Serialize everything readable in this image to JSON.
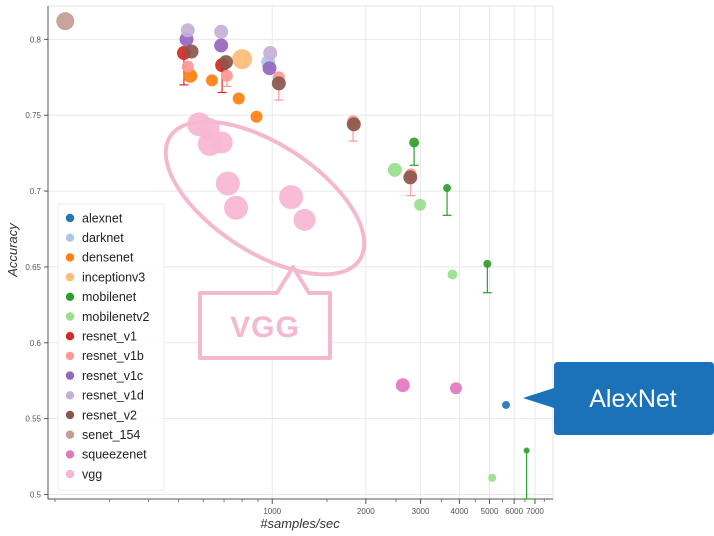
{
  "chart_data": {
    "type": "scatter",
    "title": "",
    "xlabel": "#samples/sec",
    "ylabel": "Accuracy",
    "xscale": "log",
    "xlim": [
      190,
      8000
    ],
    "ylim": [
      0.497,
      0.822
    ],
    "x_ticks": [
      {
        "value": 1000,
        "label": "1000"
      },
      {
        "value": 2000,
        "label": "2000"
      },
      {
        "value": 3000,
        "label": "3000"
      },
      {
        "value": 4000,
        "label": "4000"
      },
      {
        "value": 5000,
        "label": "5000"
      },
      {
        "value": 6000,
        "label": "6000"
      },
      {
        "value": 7000,
        "label": "7000"
      }
    ],
    "y_ticks": [
      {
        "value": 0.8,
        "label": "0.8"
      },
      {
        "value": 0.75,
        "label": "0.75"
      },
      {
        "value": 0.7,
        "label": "0.7"
      },
      {
        "value": 0.65,
        "label": "0.65"
      },
      {
        "value": 0.6,
        "label": "0.6"
      },
      {
        "value": 0.55,
        "label": "0.55"
      },
      {
        "value": 0.5,
        "label": "0.5"
      }
    ],
    "legend_position": "left",
    "series": [
      {
        "name": "alexnet",
        "color": "#1f77b4",
        "points": [
          {
            "x": 5650,
            "y": 0.559,
            "r": 4
          }
        ]
      },
      {
        "name": "darknet",
        "color": "#aec7e8",
        "points": [
          {
            "x": 970,
            "y": 0.785,
            "r": 7
          }
        ]
      },
      {
        "name": "densenet",
        "color": "#ff7f0e",
        "points": [
          {
            "x": 545,
            "y": 0.776,
            "r": 7
          },
          {
            "x": 640,
            "y": 0.773,
            "r": 6
          },
          {
            "x": 780,
            "y": 0.761,
            "r": 6
          },
          {
            "x": 890,
            "y": 0.749,
            "r": 6
          }
        ]
      },
      {
        "name": "inceptionv3",
        "color": "#ffbb78",
        "points": [
          {
            "x": 800,
            "y": 0.787,
            "r": 10
          }
        ]
      },
      {
        "name": "mobilenet",
        "color": "#2ca02c",
        "points": [
          {
            "x": 2860,
            "y": 0.732,
            "r": 5,
            "err_low": 0.717
          },
          {
            "x": 3650,
            "y": 0.702,
            "r": 4,
            "err_low": 0.684
          },
          {
            "x": 4920,
            "y": 0.652,
            "r": 4,
            "err_low": 0.633
          },
          {
            "x": 6580,
            "y": 0.529,
            "r": 3,
            "err_low": 0.497
          }
        ]
      },
      {
        "name": "mobilenetv2",
        "color": "#98df8a",
        "points": [
          {
            "x": 2480,
            "y": 0.714,
            "r": 7
          },
          {
            "x": 2990,
            "y": 0.691,
            "r": 6
          },
          {
            "x": 3800,
            "y": 0.645,
            "r": 5
          },
          {
            "x": 5100,
            "y": 0.511,
            "r": 4
          }
        ]
      },
      {
        "name": "resnet_v1",
        "color": "#d62728",
        "points": [
          {
            "x": 520,
            "y": 0.791,
            "r": 7,
            "err_low": 0.77
          },
          {
            "x": 690,
            "y": 0.783,
            "r": 7,
            "err_low": 0.765
          }
        ]
      },
      {
        "name": "resnet_v1b",
        "color": "#ff9896",
        "points": [
          {
            "x": 535,
            "y": 0.782,
            "r": 6,
            "err_low": 0.777
          },
          {
            "x": 715,
            "y": 0.776,
            "r": 6,
            "err_low": 0.769
          },
          {
            "x": 1050,
            "y": 0.775,
            "r": 6,
            "err_low": 0.76
          },
          {
            "x": 1820,
            "y": 0.746,
            "r": 6,
            "err_low": 0.733
          },
          {
            "x": 2790,
            "y": 0.711,
            "r": 6,
            "err_low": 0.697
          }
        ]
      },
      {
        "name": "resnet_v1c",
        "color": "#9467bd",
        "points": [
          {
            "x": 530,
            "y": 0.8,
            "r": 7
          },
          {
            "x": 685,
            "y": 0.796,
            "r": 7
          },
          {
            "x": 980,
            "y": 0.781,
            "r": 7
          }
        ]
      },
      {
        "name": "resnet_v1d",
        "color": "#c5b0d5",
        "points": [
          {
            "x": 535,
            "y": 0.806,
            "r": 7
          },
          {
            "x": 685,
            "y": 0.805,
            "r": 7
          },
          {
            "x": 985,
            "y": 0.791,
            "r": 7
          }
        ]
      },
      {
        "name": "resnet_v2",
        "color": "#8c564b",
        "points": [
          {
            "x": 550,
            "y": 0.792,
            "r": 7
          },
          {
            "x": 710,
            "y": 0.785,
            "r": 7
          },
          {
            "x": 1050,
            "y": 0.771,
            "r": 7
          },
          {
            "x": 1830,
            "y": 0.744,
            "r": 7
          },
          {
            "x": 2780,
            "y": 0.709,
            "r": 7
          }
        ]
      },
      {
        "name": "senet_154",
        "color": "#c49c94",
        "points": [
          {
            "x": 216,
            "y": 0.812,
            "r": 9
          }
        ]
      },
      {
        "name": "squeezenet",
        "color": "#e377c2",
        "points": [
          {
            "x": 2630,
            "y": 0.572,
            "r": 7
          },
          {
            "x": 3900,
            "y": 0.57,
            "r": 6
          }
        ]
      },
      {
        "name": "vgg",
        "color": "#f7b6d2",
        "points": [
          {
            "x": 582,
            "y": 0.744,
            "r": 12
          },
          {
            "x": 625,
            "y": 0.741,
            "r": 11
          },
          {
            "x": 630,
            "y": 0.731,
            "r": 12
          },
          {
            "x": 688,
            "y": 0.732,
            "r": 11
          },
          {
            "x": 720,
            "y": 0.705,
            "r": 12
          },
          {
            "x": 765,
            "y": 0.689,
            "r": 12
          },
          {
            "x": 1150,
            "y": 0.696,
            "r": 12
          },
          {
            "x": 1270,
            "y": 0.681,
            "r": 11
          }
        ]
      }
    ],
    "annotations": [
      {
        "id": "vgg-callout",
        "text": "VGG",
        "target": "vgg"
      },
      {
        "id": "alexnet-callout",
        "text": "AlexNet",
        "target": "alexnet"
      }
    ]
  }
}
